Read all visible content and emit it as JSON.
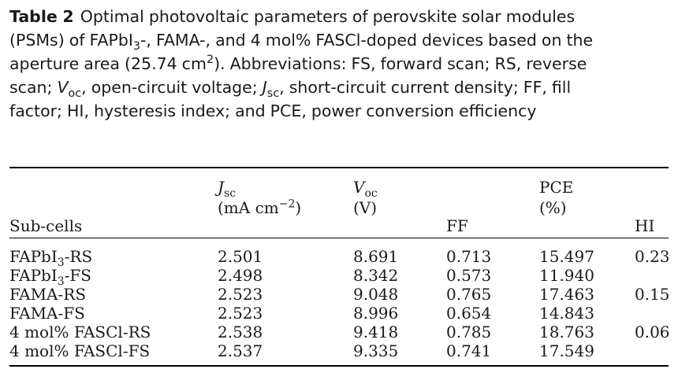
{
  "caption": {
    "label": "Table 2",
    "line1": "Optimal photovoltaic parameters of perovskite solar modules",
    "line2_a": "(PSMs) of FAPbI",
    "line2_sub": "3",
    "line2_b": "-, FAMA-, and 4 mol% FASCl-doped devices based on the",
    "line3_a": "aperture area (25.74 cm",
    "line3_sup": "2",
    "line3_b": "). Abbreviations: FS, forward scan; RS, reverse",
    "line4_a": "scan;",
    "line4_v": "V",
    "line4_vsub": "oc",
    "line4_b": ", open-circuit voltage;",
    "line4_j": "J",
    "line4_jsub": "sc",
    "line4_c": ", short-circuit current density; FF, fill",
    "line5": "factor; HI, hysteresis index; and PCE, power conversion efficiency"
  },
  "table": {
    "headers": {
      "subcells": "Sub-cells",
      "jsc_sym": "J",
      "jsc_sub": "sc",
      "jsc_unit_a": "(mA cm",
      "jsc_unit_sup": "−2",
      "jsc_unit_b": ")",
      "voc_sym": "V",
      "voc_sub": "oc",
      "voc_unit": "(V)",
      "ff": "FF",
      "pce": "PCE",
      "pce_unit": "(%)",
      "hi": "HI"
    },
    "rows": [
      {
        "name_a": "FAPbI",
        "name_sub": "3",
        "name_b": "-RS",
        "jsc": "2.501",
        "voc": "8.691",
        "ff": "0.713",
        "pce": "15.497",
        "hi": "0.23"
      },
      {
        "name_a": "FAPbI",
        "name_sub": "3",
        "name_b": "-FS",
        "jsc": "2.498",
        "voc": "8.342",
        "ff": "0.573",
        "pce": "11.940",
        "hi": ""
      },
      {
        "name_a": "FAMA-RS",
        "name_sub": "",
        "name_b": "",
        "jsc": "2.523",
        "voc": "9.048",
        "ff": "0.765",
        "pce": "17.463",
        "hi": "0.15"
      },
      {
        "name_a": "FAMA-FS",
        "name_sub": "",
        "name_b": "",
        "jsc": "2.523",
        "voc": "8.996",
        "ff": "0.654",
        "pce": "14.843",
        "hi": ""
      },
      {
        "name_a": "4 mol% FASCl-RS",
        "name_sub": "",
        "name_b": "",
        "jsc": "2.538",
        "voc": "9.418",
        "ff": "0.785",
        "pce": "18.763",
        "hi": "0.06"
      },
      {
        "name_a": "4 mol% FASCl-FS",
        "name_sub": "",
        "name_b": "",
        "jsc": "2.537",
        "voc": "9.335",
        "ff": "0.741",
        "pce": "17.549",
        "hi": ""
      }
    ]
  }
}
